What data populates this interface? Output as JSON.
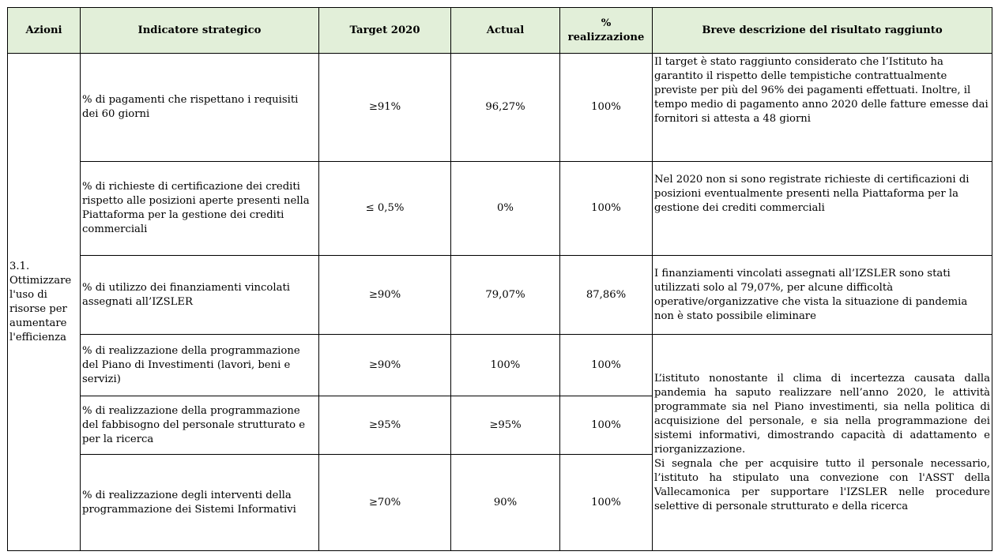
{
  "headers": {
    "azioni": "Azioni",
    "indicatore": "Indicatore strategico",
    "target": "Target 2020",
    "actual": "Actual",
    "realizzazione": "% realizzazione",
    "descrizione": "Breve descrizione del risultato raggiunto"
  },
  "azione": "3.1. Ottimizzare l'uso di risorse per aumentare l'efficienza",
  "rows": [
    {
      "indicatore": "% di pagamenti che rispettano i requisiti dei 60 giorni",
      "target": "≥91%",
      "actual": "96,27%",
      "realizzazione": "100%",
      "descrizione": "Il target è stato raggiunto considerato che l’Istituto ha garantito il rispetto delle tempistiche contrattualmente previste per più del 96% dei pagamenti effettuati. Inoltre, il tempo medio di pagamento anno 2020 delle fatture emesse dai fornitori si attesta a 48 giorni"
    },
    {
      "indicatore": "% di richieste di certificazione dei crediti rispetto alle posizioni aperte presenti nella Piattaforma per la gestione dei crediti commerciali",
      "target": "≤ 0,5%",
      "actual": "0%",
      "realizzazione": "100%",
      "descrizione": "Nel 2020 non si sono registrate richieste di certificazioni di posizioni eventualmente presenti nella Piattaforma per la gestione dei crediti commerciali"
    },
    {
      "indicatore": "% di utilizzo dei finanziamenti vincolati assegnati all’IZSLER",
      "target": "≥90%",
      "actual": "79,07%",
      "realizzazione": "87,86%",
      "descrizione": "I finanziamenti vincolati assegnati all’IZSLER sono stati utilizzati solo al 79,07%, per alcune difficoltà operative/organizzative che vista la situazione di pandemia non è stato possibile eliminare"
    },
    {
      "indicatore": "% di realizzazione della programmazione del Piano di Investimenti (lavori, beni e servizi)",
      "target": "≥90%",
      "actual": "100%",
      "realizzazione": "100%"
    },
    {
      "indicatore": "% di realizzazione della programmazione del fabbisogno del personale strutturato e per la ricerca",
      "target": "≥95%",
      "actual": "≥95%",
      "realizzazione": "100%"
    },
    {
      "indicatore": "% di realizzazione degli interventi della programmazione dei Sistemi Informativi",
      "target": "≥70%",
      "actual": "90%",
      "realizzazione": "100%"
    }
  ],
  "descrizione_merged": {
    "p1": "L’istituto nonostante il clima di incertezza causata dalla pandemia ha saputo realizzare nell’anno 2020, le attività programmate sia nel Piano investimenti, sia nella politica di acquisizione del personale, e sia nella programmazione dei sistemi informativi, dimostrando capacità di adattamento e riorganizzazione.",
    "p2": " Si segnala che per acquisire tutto il personale necessario, l’istituto ha stipulato una convezione con l'ASST della Vallecamonica per supportare l'IZSLER nelle procedure selettive di personale strutturato e della ricerca"
  }
}
